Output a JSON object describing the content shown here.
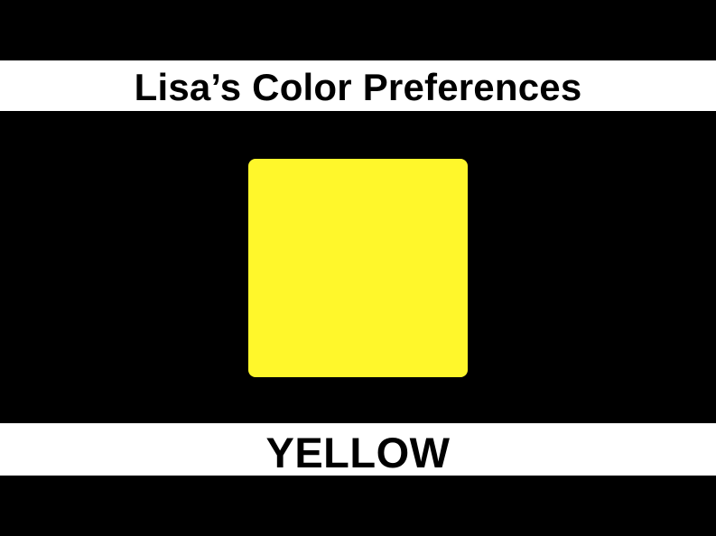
{
  "title": "Lisa’s Color Preferences",
  "color_name": "YELLOW",
  "colors": {
    "background": "#000000",
    "band": "#ffffff",
    "text": "#000000",
    "swatch": "#fff72b"
  }
}
